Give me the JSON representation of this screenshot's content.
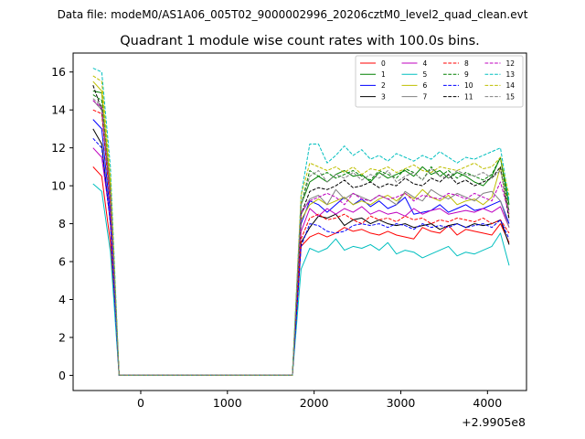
{
  "figure": {
    "suptitle": "Data file: modeM0/AS1A06_005T02_9000002996_20206cztM0_level2_quad_clean.evt",
    "background": "#ffffff"
  },
  "chart_data": {
    "type": "line",
    "title": "Quadrant 1 module wise count rates with 100.0s bins.",
    "xlabel": "",
    "ylabel": "",
    "x_offset_label": "+2.9905e8",
    "xlim": [
      -780,
      4450
    ],
    "ylim": [
      -0.8,
      17.0
    ],
    "xticks": [
      0,
      1000,
      2000,
      3000,
      4000
    ],
    "yticks": [
      0,
      2,
      4,
      6,
      8,
      10,
      12,
      14,
      16
    ],
    "grid": false,
    "legend": {
      "placement": "top-right",
      "columns": 4
    },
    "x": [
      -550,
      -450,
      -350,
      -250,
      1750,
      1850,
      1950,
      2050,
      2150,
      2250,
      2350,
      2450,
      2550,
      2650,
      2750,
      2850,
      2950,
      3050,
      3150,
      3250,
      3350,
      3450,
      3550,
      3650,
      3750,
      3850,
      3950,
      4050,
      4150,
      4250
    ],
    "series": [
      {
        "name": "0",
        "color": "#ff0000",
        "dash": "solid",
        "values": [
          11.0,
          10.5,
          7.0,
          0,
          0,
          6.8,
          7.3,
          7.5,
          7.3,
          7.5,
          7.8,
          7.6,
          7.7,
          7.5,
          7.4,
          7.6,
          7.4,
          7.3,
          7.2,
          7.8,
          7.6,
          7.5,
          7.9,
          7.4,
          7.7,
          7.6,
          7.5,
          7.4,
          8.0,
          7.0
        ]
      },
      {
        "name": "1",
        "color": "#008000",
        "dash": "solid",
        "values": [
          15.0,
          14.9,
          10.0,
          0,
          0,
          9.0,
          10.2,
          10.5,
          10.2,
          10.6,
          10.8,
          10.5,
          10.6,
          10.2,
          10.7,
          10.4,
          10.6,
          10.8,
          10.5,
          11.0,
          10.6,
          10.8,
          10.4,
          10.7,
          10.5,
          10.2,
          10.0,
          10.5,
          11.5,
          9.0
        ]
      },
      {
        "name": "2",
        "color": "#0000ff",
        "dash": "solid",
        "values": [
          13.5,
          13.0,
          8.5,
          0,
          0,
          8.0,
          9.2,
          9.0,
          8.6,
          9.0,
          9.4,
          9.0,
          9.3,
          8.9,
          9.2,
          8.8,
          9.0,
          9.4,
          8.5,
          8.6,
          8.7,
          9.0,
          8.6,
          8.8,
          9.0,
          8.7,
          8.8,
          9.0,
          9.2,
          8.0
        ]
      },
      {
        "name": "3",
        "color": "#000000",
        "dash": "solid",
        "values": [
          13.0,
          12.2,
          8.0,
          0,
          0,
          7.0,
          7.8,
          8.4,
          8.3,
          8.5,
          7.9,
          8.2,
          8.3,
          8.0,
          8.2,
          8.0,
          7.9,
          8.0,
          7.8,
          7.9,
          8.0,
          7.7,
          7.9,
          8.0,
          7.8,
          8.0,
          7.9,
          8.0,
          8.2,
          6.9
        ]
      },
      {
        "name": "4",
        "color": "#bf00bf",
        "dash": "solid",
        "values": [
          12.0,
          11.5,
          8.2,
          0,
          0,
          7.6,
          8.8,
          8.4,
          8.8,
          8.5,
          8.8,
          8.6,
          8.9,
          8.5,
          8.7,
          8.5,
          8.6,
          8.4,
          8.8,
          8.5,
          8.7,
          8.8,
          8.5,
          8.6,
          8.7,
          8.6,
          8.8,
          8.6,
          8.9,
          7.8
        ]
      },
      {
        "name": "5",
        "color": "#00bfbf",
        "dash": "solid",
        "values": [
          10.1,
          9.7,
          6.5,
          0,
          0,
          5.6,
          6.7,
          6.5,
          6.7,
          7.2,
          6.6,
          6.8,
          6.7,
          6.9,
          6.6,
          7.0,
          6.4,
          6.6,
          6.5,
          6.2,
          6.4,
          6.6,
          6.8,
          6.3,
          6.5,
          6.4,
          6.6,
          6.8,
          7.5,
          5.8
        ]
      },
      {
        "name": "6",
        "color": "#bfbf00",
        "dash": "solid",
        "values": [
          15.5,
          15.0,
          10.0,
          0,
          0,
          8.2,
          9.0,
          9.3,
          9.0,
          9.2,
          9.4,
          9.0,
          9.2,
          9.0,
          9.3,
          9.5,
          9.2,
          9.6,
          9.3,
          9.8,
          9.4,
          9.2,
          9.5,
          9.0,
          9.2,
          9.3,
          9.0,
          9.4,
          11.0,
          8.3
        ]
      },
      {
        "name": "7",
        "color": "#808080",
        "dash": "solid",
        "values": [
          14.5,
          14.0,
          9.0,
          0,
          0,
          8.5,
          9.3,
          9.5,
          9.0,
          9.8,
          9.3,
          9.6,
          9.4,
          9.2,
          9.5,
          9.3,
          9.0,
          9.7,
          9.4,
          9.2,
          9.8,
          9.5,
          9.3,
          9.6,
          9.4,
          9.2,
          9.6,
          9.7,
          9.2,
          7.8
        ]
      },
      {
        "name": "8",
        "color": "#ff0000",
        "dash": "dashed",
        "values": [
          14.0,
          13.8,
          9.0,
          0,
          0,
          7.2,
          8.3,
          8.5,
          8.2,
          8.3,
          8.5,
          8.2,
          8.0,
          8.4,
          8.2,
          8.3,
          8.1,
          8.4,
          8.2,
          8.3,
          8.0,
          8.2,
          8.1,
          8.3,
          8.2,
          8.1,
          8.3,
          8.0,
          8.2,
          7.5
        ]
      },
      {
        "name": "9",
        "color": "#008000",
        "dash": "dashed",
        "values": [
          14.8,
          14.5,
          9.5,
          0,
          0,
          9.0,
          10.8,
          10.5,
          10.7,
          10.4,
          10.6,
          10.8,
          10.5,
          10.3,
          10.8,
          10.6,
          10.4,
          10.9,
          10.7,
          10.3,
          11.0,
          10.5,
          10.8,
          10.4,
          10.7,
          10.5,
          10.3,
          10.6,
          11.5,
          8.6
        ]
      },
      {
        "name": "10",
        "color": "#0000ff",
        "dash": "dashed",
        "values": [
          12.5,
          12.0,
          8.0,
          0,
          0,
          6.8,
          8.0,
          7.9,
          7.6,
          7.5,
          7.6,
          7.9,
          8.0,
          7.9,
          8.0,
          7.8,
          8.0,
          7.9,
          7.7,
          8.0,
          7.8,
          7.9,
          7.8,
          8.0,
          7.8,
          7.9,
          8.0,
          7.8,
          8.2,
          7.2
        ]
      },
      {
        "name": "11",
        "color": "#000000",
        "dash": "dashed",
        "values": [
          15.3,
          14.0,
          9.5,
          0,
          0,
          8.5,
          9.7,
          9.9,
          9.8,
          10.0,
          10.3,
          9.9,
          10.0,
          10.2,
          9.9,
          10.1,
          10.0,
          10.4,
          10.1,
          10.0,
          10.4,
          10.2,
          10.6,
          10.1,
          10.3,
          10.0,
          10.2,
          10.4,
          11.0,
          8.2
        ]
      },
      {
        "name": "12",
        "color": "#bf00bf",
        "dash": "dashed",
        "values": [
          14.5,
          14.1,
          9.5,
          0,
          0,
          8.6,
          9.2,
          9.4,
          9.6,
          9.4,
          9.0,
          9.6,
          9.3,
          9.2,
          9.5,
          9.3,
          9.4,
          9.6,
          9.2,
          9.5,
          9.4,
          9.3,
          9.6,
          9.5,
          9.3,
          9.6,
          9.4,
          9.2,
          10.2,
          8.5
        ]
      },
      {
        "name": "13",
        "color": "#00bfbf",
        "dash": "dashed",
        "values": [
          16.2,
          16.0,
          11.0,
          0,
          0,
          9.5,
          12.2,
          12.2,
          11.2,
          11.6,
          12.1,
          11.6,
          11.9,
          11.4,
          11.6,
          11.3,
          11.7,
          11.5,
          11.3,
          11.6,
          11.4,
          11.8,
          11.5,
          11.2,
          11.5,
          11.4,
          11.6,
          11.8,
          12.0,
          9.2
        ]
      },
      {
        "name": "14",
        "color": "#bfbf00",
        "dash": "dashed",
        "values": [
          15.8,
          15.5,
          10.5,
          0,
          0,
          9.5,
          11.2,
          11.0,
          10.8,
          11.0,
          10.7,
          11.0,
          10.6,
          10.9,
          10.8,
          11.0,
          10.7,
          10.9,
          11.1,
          10.8,
          10.7,
          11.0,
          10.9,
          10.8,
          11.0,
          11.2,
          10.9,
          11.0,
          11.5,
          9.5
        ]
      },
      {
        "name": "15",
        "color": "#808080",
        "dash": "dashed",
        "values": [
          14.6,
          14.2,
          9.4,
          0,
          0,
          9.0,
          10.5,
          10.8,
          10.2,
          10.6,
          10.4,
          10.7,
          10.3,
          10.6,
          10.4,
          10.8,
          10.2,
          10.5,
          10.7,
          10.3,
          10.9,
          10.5,
          10.4,
          10.8,
          10.6,
          10.5,
          10.7,
          10.4,
          10.8,
          8.7
        ]
      }
    ]
  }
}
